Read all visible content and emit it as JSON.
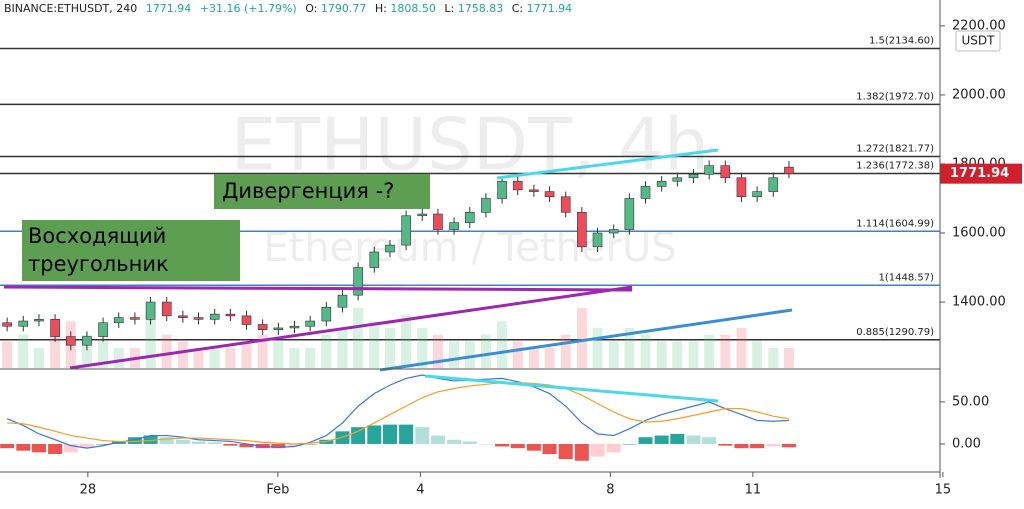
{
  "header": {
    "symbol": "BINANCE:ETHUSDT, 240",
    "price": "1771.94",
    "change": "+31.16 (+1.79%)",
    "ohlc": [
      {
        "key": "O:",
        "value": "1790.77"
      },
      {
        "key": "H:",
        "value": "1808.50"
      },
      {
        "key": "L:",
        "value": "1758.83"
      },
      {
        "key": "C:",
        "value": "1771.94"
      }
    ]
  },
  "watermark": {
    "title": "ETHUSDT, 4h",
    "subtitle": "Ethereum / TetherUS"
  },
  "annotations": {
    "divergence": "Дивергенция -?",
    "triangle": [
      "Восходящий",
      "треугольник"
    ]
  },
  "chart_data": {
    "type": "candlestick",
    "currency": "USDT",
    "up_color": "#53b987",
    "down_color": "#eb4d5c",
    "last_price_label": "1771.94",
    "x": [
      0.3,
      0.64,
      0.97,
      1.31,
      1.64,
      1.98,
      2.32,
      2.65,
      2.99,
      3.32,
      3.66,
      4.0,
      4.33,
      4.67,
      5.0,
      5.34,
      5.68,
      6.01,
      6.35,
      6.68,
      7.02,
      7.36,
      7.69,
      8.03,
      8.36,
      8.7,
      9.04,
      9.37,
      9.71,
      10.04,
      10.38,
      10.72,
      11.05,
      11.39,
      11.72,
      12.06,
      12.4,
      12.73,
      13.07,
      13.4,
      13.74,
      14.08,
      14.41,
      14.75,
      15.08,
      15.42,
      15.76,
      16.09,
      16.43,
      16.76
    ],
    "open": [
      1340,
      1330,
      1345,
      1350,
      1300,
      1275,
      1300,
      1340,
      1355,
      1350,
      1400,
      1360,
      1355,
      1350,
      1365,
      1360,
      1335,
      1320,
      1325,
      1330,
      1345,
      1385,
      1420,
      1500,
      1545,
      1565,
      1650,
      1655,
      1610,
      1630,
      1660,
      1700,
      1750,
      1725,
      1720,
      1705,
      1660,
      1560,
      1600,
      1610,
      1700,
      1735,
      1750,
      1760,
      1770,
      1795,
      1760,
      1705,
      1720,
      1790.77
    ],
    "high": [
      1355,
      1360,
      1365,
      1365,
      1315,
      1315,
      1355,
      1370,
      1370,
      1415,
      1415,
      1375,
      1370,
      1380,
      1380,
      1375,
      1350,
      1340,
      1345,
      1360,
      1400,
      1435,
      1515,
      1560,
      1580,
      1665,
      1670,
      1670,
      1645,
      1675,
      1715,
      1765,
      1765,
      1740,
      1735,
      1720,
      1675,
      1615,
      1625,
      1715,
      1750,
      1765,
      1775,
      1785,
      1810,
      1810,
      1775,
      1735,
      1775,
      1808.5
    ],
    "low": [
      1315,
      1315,
      1330,
      1285,
      1260,
      1260,
      1285,
      1325,
      1335,
      1335,
      1345,
      1340,
      1335,
      1335,
      1345,
      1320,
      1305,
      1305,
      1310,
      1315,
      1330,
      1370,
      1405,
      1485,
      1530,
      1550,
      1635,
      1595,
      1595,
      1615,
      1645,
      1685,
      1710,
      1705,
      1690,
      1645,
      1545,
      1545,
      1585,
      1595,
      1685,
      1720,
      1735,
      1745,
      1755,
      1745,
      1690,
      1690,
      1705,
      1758.83
    ],
    "close": [
      1330,
      1345,
      1350,
      1300,
      1275,
      1300,
      1340,
      1355,
      1350,
      1400,
      1360,
      1355,
      1350,
      1365,
      1360,
      1335,
      1320,
      1325,
      1330,
      1345,
      1385,
      1420,
      1500,
      1545,
      1565,
      1650,
      1655,
      1610,
      1630,
      1660,
      1700,
      1750,
      1725,
      1720,
      1705,
      1660,
      1560,
      1600,
      1610,
      1700,
      1735,
      1750,
      1760,
      1770,
      1795,
      1760,
      1705,
      1720,
      1760,
      1771.94
    ],
    "volume": [
      4,
      5,
      3,
      6,
      7,
      5,
      4,
      3,
      3,
      8,
      5,
      4,
      3,
      3,
      3,
      4,
      5,
      4,
      3,
      3,
      5,
      6,
      9,
      7,
      6,
      8,
      6,
      5,
      4,
      4,
      5,
      7,
      4,
      3,
      3,
      5,
      9,
      6,
      4,
      6,
      5,
      4,
      4,
      4,
      5,
      5,
      6,
      4,
      3,
      3
    ],
    "xlim": [
      0.15,
      19.94
    ],
    "xticks": [
      {
        "value": 2,
        "label": "28"
      },
      {
        "value": 6,
        "label": "Feb"
      },
      {
        "value": 9,
        "label": "4"
      },
      {
        "value": 13,
        "label": "8"
      },
      {
        "value": 16,
        "label": "11"
      },
      {
        "value": 20,
        "label": "15"
      }
    ],
    "ylim": [
      1209,
      2217
    ],
    "yticks": [
      {
        "value": 1400,
        "label": "1400.00"
      },
      {
        "value": 1600,
        "label": "1600.00"
      },
      {
        "value": 1800,
        "label": "1800.00"
      },
      {
        "value": 2000,
        "label": "2000.00"
      },
      {
        "value": 2200,
        "label": "2200.00"
      }
    ],
    "fib_levels": [
      {
        "label": "1.5(2134.60)",
        "value": 2134.6,
        "color": "#333333"
      },
      {
        "label": "1.382(1972.70)",
        "value": 1972.7,
        "color": "#333333"
      },
      {
        "label": "1.272(1821.77)",
        "value": 1821.77,
        "color": "#333333"
      },
      {
        "label": "1.236(1772.38)",
        "value": 1772.38,
        "color": "#333333"
      },
      {
        "label": "1.114(1604.99)",
        "value": 1604.99,
        "color": "#3f7fd0"
      },
      {
        "label": "1(1448.57)",
        "value": 1448.57,
        "color": "#3f7fd0"
      },
      {
        "label": "0.885(1290.79)",
        "value": 1290.79,
        "color": "#333333"
      }
    ],
    "macd": {
      "ylim": [
        -31,
        88
      ],
      "yticks": [
        {
          "value": 0,
          "label": "0.00"
        },
        {
          "value": 50,
          "label": "50.00"
        }
      ],
      "macd_line": {
        "color": "#3c78d8",
        "values": [
          30,
          22,
          12,
          5,
          -2,
          -5,
          -2,
          2,
          5,
          10,
          10,
          8,
          5,
          4,
          3,
          0,
          -3,
          -4,
          -3,
          2,
          10,
          25,
          45,
          60,
          70,
          78,
          82,
          78,
          75,
          76,
          77,
          78,
          74,
          68,
          60,
          45,
          25,
          12,
          10,
          18,
          28,
          35,
          40,
          45,
          50,
          42,
          35,
          28,
          27,
          28
        ]
      },
      "signal_line": {
        "color": "#f0a030",
        "values": [
          25,
          24,
          20,
          15,
          10,
          7,
          4,
          3,
          3,
          4,
          6,
          7,
          7,
          6,
          5,
          4,
          2,
          1,
          0,
          1,
          3,
          8,
          15,
          25,
          35,
          45,
          55,
          62,
          66,
          69,
          71,
          73,
          73,
          72,
          70,
          66,
          58,
          48,
          38,
          30,
          26,
          27,
          30,
          34,
          38,
          42,
          42,
          38,
          33,
          30
        ]
      },
      "histogram": {
        "values": [
          -5,
          -8,
          -10,
          -12,
          -10,
          -5,
          0,
          3,
          8,
          10,
          8,
          5,
          3,
          2,
          -2,
          -4,
          -5,
          -5,
          -3,
          0,
          5,
          15,
          20,
          22,
          23,
          23,
          20,
          10,
          5,
          3,
          0,
          -3,
          -5,
          -8,
          -12,
          -18,
          -20,
          -15,
          -10,
          0,
          8,
          10,
          12,
          10,
          8,
          -2,
          -5,
          -5,
          -3,
          -4
        ]
      }
    }
  }
}
